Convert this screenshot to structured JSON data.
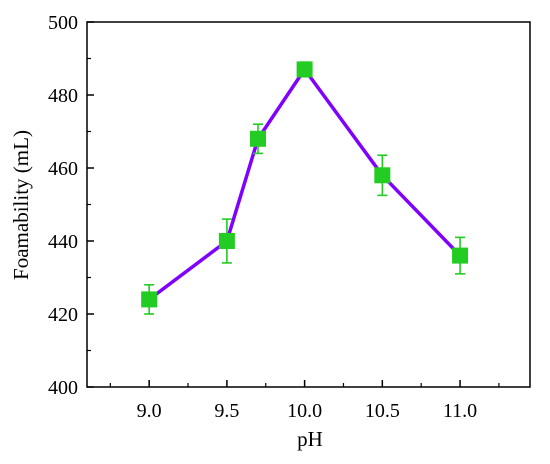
{
  "chart_data": {
    "type": "line",
    "title": "",
    "xlabel": "pH",
    "ylabel": "Foamability (mL)",
    "xlim": [
      8.6,
      11.45
    ],
    "ylim": [
      400,
      500
    ],
    "x_ticks": [
      9.0,
      9.5,
      10.0,
      10.5,
      11.0
    ],
    "x_tick_labels": [
      "9.0",
      "9.5",
      "10.0",
      "10.5",
      "11.0"
    ],
    "y_ticks": [
      400,
      420,
      440,
      460,
      480,
      500
    ],
    "y_tick_labels": [
      "400",
      "420",
      "440",
      "460",
      "480",
      "500"
    ],
    "grid": false,
    "legend": "none",
    "series": [
      {
        "x": [
          9.0,
          9.5,
          9.7,
          10.0,
          10.5,
          11.0
        ],
        "values": [
          424,
          440,
          468,
          487,
          458,
          436
        ],
        "error": [
          4,
          6,
          4,
          2,
          5.5,
          5
        ],
        "line_color": "#8000ff",
        "marker_color": "#22cc22",
        "marker": "square"
      }
    ]
  }
}
